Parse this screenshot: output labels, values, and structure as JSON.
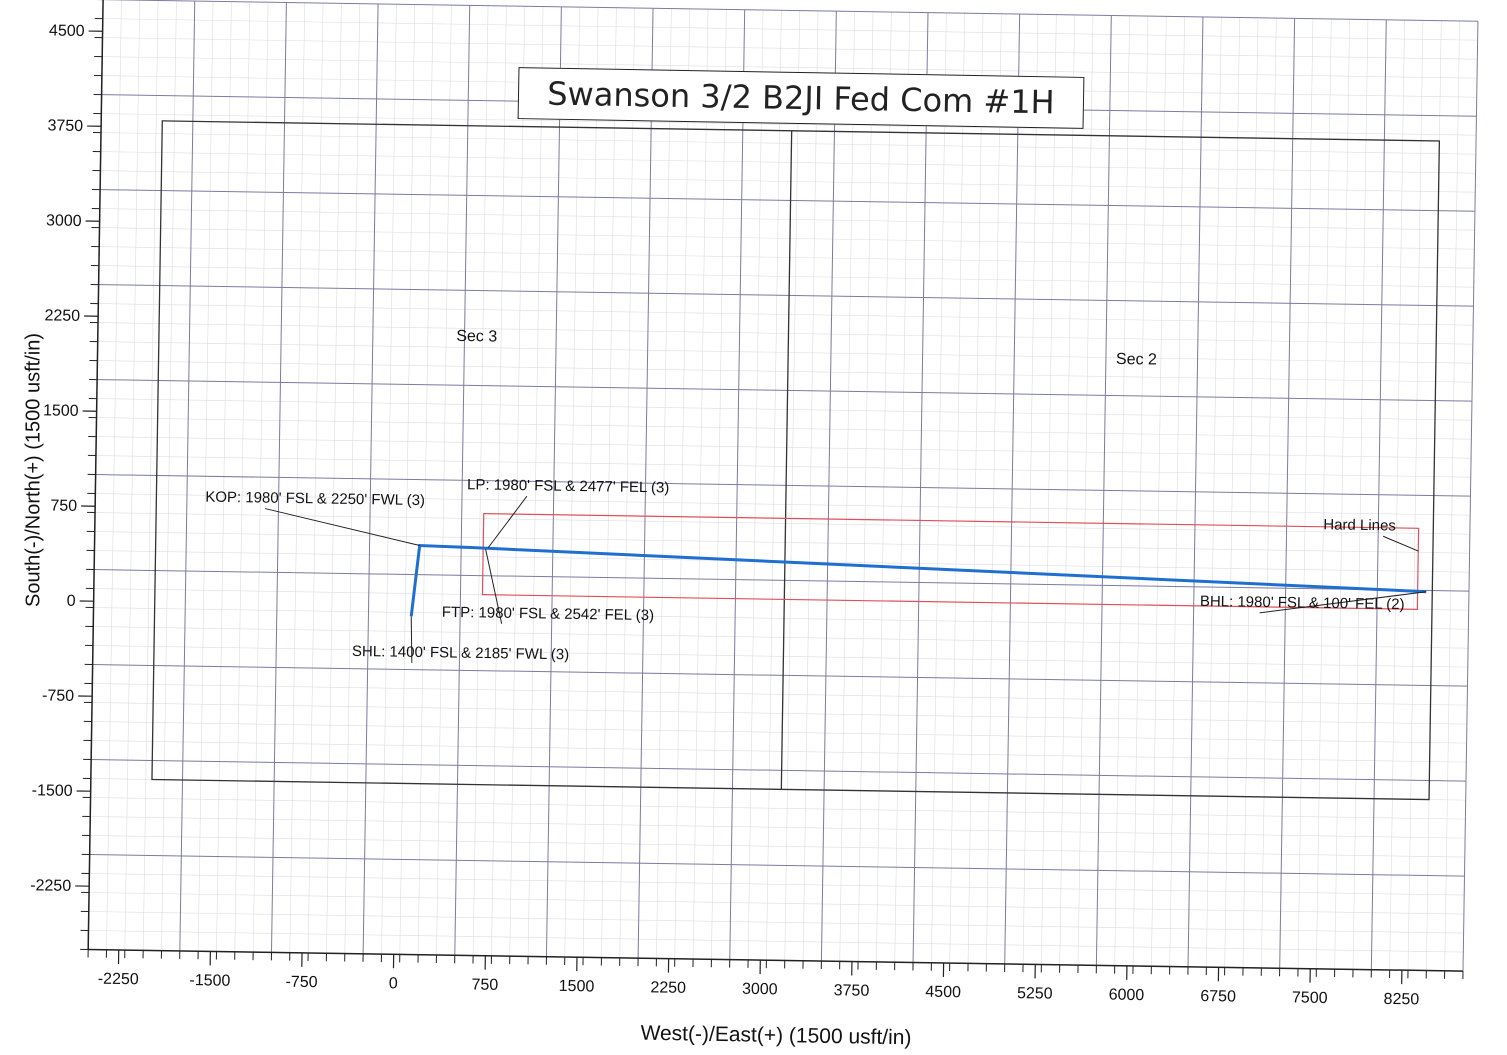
{
  "chart_data": {
    "type": "line",
    "title": "Swanson 3/2 B2JI Fed Com #1H",
    "xlabel": "West(-)/East(+) (1500 usft/in)",
    "ylabel": "South(-)/North(+) (1500 usft/in)",
    "xlim": [
      -2500,
      8750
    ],
    "ylim": [
      -2750,
      4750
    ],
    "x_ticks": [
      -2250,
      -1500,
      -750,
      0,
      750,
      1500,
      2250,
      3000,
      3750,
      4500,
      5250,
      6000,
      6750,
      7500,
      8250
    ],
    "y_ticks": [
      4500,
      3750,
      3000,
      2250,
      1500,
      750,
      0,
      -750,
      -1500,
      -2250
    ],
    "grid": true,
    "series": [
      {
        "color": "#1f6fd1",
        "x": [
          100,
          160,
          600,
          8400
        ],
        "y": [
          -80,
          480,
          470,
          240
        ]
      }
    ],
    "section_boundary": {
      "color": "#333333",
      "x": [
        -2000,
        8450
      ],
      "y": [
        -1400,
        3800
      ],
      "divider_x": 3150
    },
    "hard_lines": {
      "color": "#e0505a",
      "x": [
        680,
        8330
      ],
      "y": [
        100,
        740
      ]
    },
    "section_labels": [
      {
        "text": "Sec 3",
        "x": 600,
        "y": 2100
      },
      {
        "text": "Sec 2",
        "x": 6000,
        "y": 2000
      }
    ],
    "annotations": [
      {
        "text": "KOP: 1980' FSL & 2250' FWL (3)",
        "x": -1600,
        "y": 800,
        "point_x": 160,
        "point_y": 480
      },
      {
        "text": "LP: 1980' FSL & 2477' FEL (3)",
        "x": 540,
        "y": 930,
        "point_x": 720,
        "point_y": 470
      },
      {
        "text": "FTP: 1980' FSL & 2542' FEL (3)",
        "x": 350,
        "y": -80,
        "point_x": 700,
        "point_y": 460
      },
      {
        "text": "SHL: 1400' FSL & 2185' FWL (3)",
        "x": -380,
        "y": -400,
        "point_x": 100,
        "point_y": -80
      },
      {
        "text": "Hard Lines",
        "x": 7550,
        "y": 720,
        "point_x": 8330,
        "point_y": 560
      },
      {
        "text": "BHL: 1980' FSL & 100' FEL (2)",
        "x": 6550,
        "y": 100,
        "point_x": 8400,
        "point_y": 240
      }
    ]
  }
}
